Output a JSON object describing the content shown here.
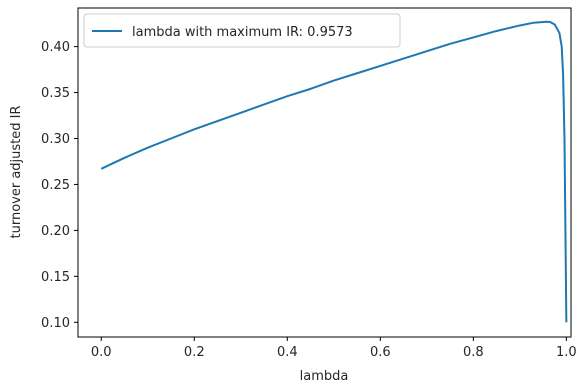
{
  "chart_data": {
    "type": "line",
    "title": "",
    "xlabel": "lambda",
    "ylabel": "turnover adjusted IR",
    "xlim": [
      -0.05,
      1.01
    ],
    "ylim": [
      0.084,
      0.442
    ],
    "xticks": [
      0.0,
      0.2,
      0.4,
      0.6,
      0.8,
      1.0
    ],
    "xtick_labels": [
      "0.0",
      "0.2",
      "0.4",
      "0.6",
      "0.8",
      "1.0"
    ],
    "yticks": [
      0.1,
      0.15,
      0.2,
      0.25,
      0.3,
      0.35,
      0.4
    ],
    "ytick_labels": [
      "0.10",
      "0.15",
      "0.20",
      "0.25",
      "0.30",
      "0.35",
      "0.40"
    ],
    "grid": false,
    "legend_position": "top-left",
    "series": [
      {
        "name": "lambda with maximum IR: 0.9573",
        "color": "#1f77b4",
        "x": [
          0.0,
          0.05,
          0.1,
          0.15,
          0.2,
          0.25,
          0.3,
          0.35,
          0.4,
          0.45,
          0.5,
          0.55,
          0.6,
          0.65,
          0.7,
          0.75,
          0.8,
          0.85,
          0.9,
          0.93,
          0.95,
          0.9573,
          0.965,
          0.975,
          0.985,
          0.99,
          0.993,
          0.996,
          0.998,
          1.0
        ],
        "y": [
          0.267,
          0.279,
          0.29,
          0.3,
          0.31,
          0.319,
          0.328,
          0.337,
          0.346,
          0.354,
          0.363,
          0.371,
          0.379,
          0.387,
          0.395,
          0.403,
          0.41,
          0.417,
          0.423,
          0.426,
          0.4268,
          0.427,
          0.4268,
          0.424,
          0.415,
          0.4,
          0.37,
          0.3,
          0.2,
          0.1
        ]
      }
    ]
  }
}
